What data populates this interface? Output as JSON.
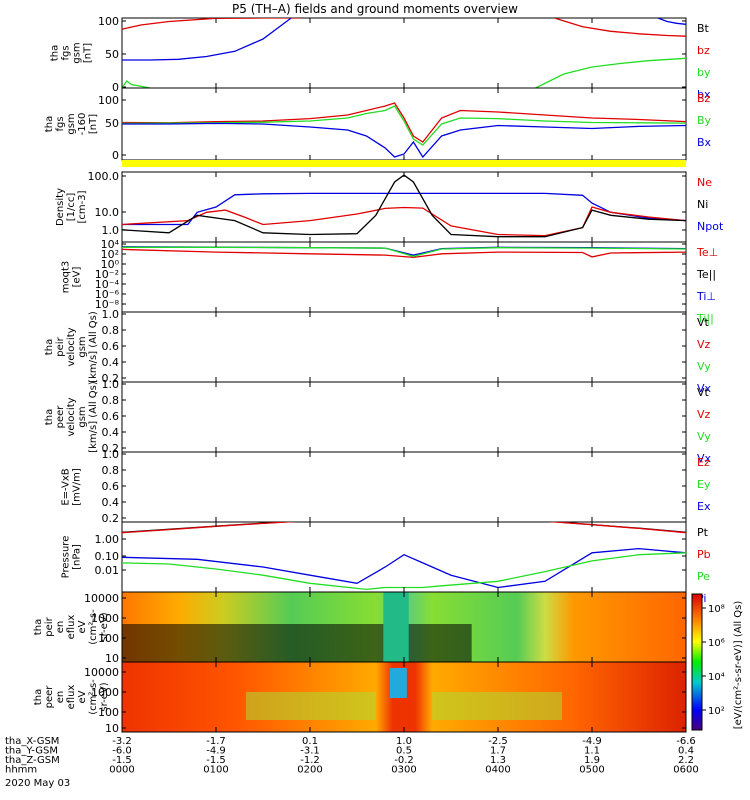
{
  "title": "P5 (TH–A) fields and ground moments overview",
  "footer_date": "2020 May 03",
  "colorbar_label": "[eV/(cm²-s-sr-eV)] (All Qs)",
  "colorbar_ticks": [
    "10⁸",
    "10⁶",
    "10⁴",
    "10²"
  ],
  "colors": {
    "red": "#e00000",
    "green": "#22dd22",
    "blue": "#0000e0",
    "yellow": "#ffff00",
    "black": "#000000"
  },
  "x_axis": {
    "row_labels": [
      "tha_X-GSM",
      "tha_Y-GSM",
      "tha_Z-GSM",
      "hhmm"
    ],
    "columns": [
      {
        "values": [
          "-3.2",
          "-6.0",
          "-1.5",
          "0000"
        ]
      },
      {
        "values": [
          "-1.7",
          "-4.9",
          "-1.5",
          "0100"
        ]
      },
      {
        "values": [
          "0.1",
          "-3.1",
          "-1.2",
          "0200"
        ]
      },
      {
        "values": [
          "1.0",
          "0.5",
          "-0.2",
          "0300"
        ]
      },
      {
        "values": [
          "-2.5",
          "1.7",
          "1.3",
          "0400"
        ]
      },
      {
        "values": [
          "-4.9",
          "1.1",
          "1.9",
          "0500"
        ]
      },
      {
        "values": [
          "-6.6",
          "0.4",
          "2.2",
          "0600"
        ]
      }
    ]
  },
  "chart_data": [
    {
      "type": "line",
      "ylabel_lines": [
        "tha",
        "fgs",
        "gsm",
        "[nT]"
      ],
      "ylim": [
        -100,
        100
      ],
      "yticks": [
        "100",
        "50",
        "0",
        "-50",
        "-100"
      ],
      "legend": [
        {
          "label": "Bt",
          "color": "black"
        },
        {
          "label": "bz",
          "color": "red"
        },
        {
          "label": "by",
          "color": "green"
        },
        {
          "label": "bx",
          "color": "blue"
        }
      ],
      "series": [
        {
          "name": "bz",
          "color": "red",
          "x": [
            0,
            0.2,
            0.5,
            1,
            1.5,
            1.9
          ],
          "y": [
            68,
            80,
            90,
            99,
            100,
            100
          ]
        },
        {
          "name": "bz",
          "color": "red",
          "x": [
            4.6,
            4.9,
            5.2,
            5.5,
            5.8,
            6.0
          ],
          "y": [
            100,
            75,
            62,
            55,
            50,
            48
          ]
        },
        {
          "name": "bx",
          "color": "blue",
          "x": [
            0,
            0.3,
            0.6,
            0.9,
            1.2,
            1.5,
            1.7,
            1.8
          ],
          "y": [
            -20,
            -20,
            -18,
            -10,
            5,
            40,
            80,
            100
          ]
        },
        {
          "name": "bx",
          "color": "blue",
          "x": [
            5.7,
            5.8,
            5.9,
            6.0
          ],
          "y": [
            100,
            90,
            85,
            82
          ]
        },
        {
          "name": "by",
          "color": "green",
          "x": [
            0,
            0.05,
            0.1,
            0.3
          ],
          "y": [
            -100,
            -80,
            -90,
            -100
          ]
        },
        {
          "name": "by",
          "color": "green",
          "x": [
            4.4,
            4.7,
            5.0,
            5.3,
            5.6,
            6.0
          ],
          "y": [
            -100,
            -60,
            -40,
            -30,
            -22,
            -15
          ]
        }
      ]
    },
    {
      "type": "line",
      "ylabel_lines": [
        "tha",
        "fgs",
        "gsm",
        "-160",
        "[nT]"
      ],
      "ylim": [
        -120,
        120
      ],
      "yticks": [
        "100",
        "50",
        "0",
        "-50",
        "-100"
      ],
      "legend": [
        {
          "label": "Bz",
          "color": "red"
        },
        {
          "label": "By",
          "color": "green"
        },
        {
          "label": "Bx",
          "color": "blue"
        }
      ],
      "series": [
        {
          "name": "Bz",
          "color": "red",
          "x": [
            0,
            0.5,
            1,
            1.5,
            2,
            2.4,
            2.6,
            2.8,
            2.9,
            3.0,
            3.1,
            3.2,
            3.4,
            3.6,
            4,
            4.5,
            5,
            5.5,
            6
          ],
          "y": [
            5,
            4,
            8,
            10,
            18,
            30,
            45,
            60,
            70,
            20,
            -40,
            -60,
            20,
            45,
            40,
            30,
            20,
            15,
            8
          ]
        },
        {
          "name": "By",
          "color": "green",
          "x": [
            0,
            0.5,
            1,
            1.5,
            2,
            2.4,
            2.6,
            2.8,
            2.9,
            3.0,
            3.1,
            3.2,
            3.4,
            3.6,
            4,
            4.5,
            5,
            5.5,
            6
          ],
          "y": [
            2,
            3,
            4,
            6,
            10,
            20,
            35,
            45,
            60,
            10,
            -50,
            -70,
            0,
            20,
            18,
            10,
            5,
            4,
            3
          ]
        },
        {
          "name": "Bx",
          "color": "blue",
          "x": [
            0,
            0.5,
            1,
            1.5,
            2,
            2.4,
            2.6,
            2.8,
            2.9,
            3.0,
            3.1,
            3.2,
            3.4,
            3.6,
            4,
            4.5,
            5,
            5.5,
            6
          ],
          "y": [
            0,
            0,
            2,
            0,
            -10,
            -20,
            -40,
            -80,
            -110,
            -100,
            -60,
            -110,
            -40,
            -20,
            -5,
            -10,
            -15,
            -8,
            -5
          ]
        }
      ]
    },
    {
      "type": "line",
      "ylabel_lines": [
        "Density",
        "[1/cc]",
        "[cm-3]"
      ],
      "yscale": "log",
      "ylim": [
        0.03,
        300
      ],
      "yticks": [
        "100.0",
        "10.0",
        "1.0",
        "0.1"
      ],
      "legend": [
        {
          "label": "Ne",
          "color": "red"
        },
        {
          "label": "Ni",
          "color": "black"
        },
        {
          "label": "Npot",
          "color": "blue"
        }
      ],
      "series": [
        {
          "name": "Npot",
          "color": "blue",
          "x": [
            0,
            0.7,
            0.8,
            1,
            1.2,
            1.5,
            2,
            2.5,
            3,
            3.5,
            4,
            4.5,
            4.9,
            5.0,
            5.2,
            5.6,
            6
          ],
          "y": [
            0.3,
            0.3,
            1.5,
            3,
            15,
            17,
            18,
            18,
            18,
            18,
            18,
            18,
            14,
            5,
            1.5,
            0.7,
            0.5
          ]
        },
        {
          "name": "Ne",
          "color": "red",
          "x": [
            0,
            0.7,
            0.9,
            1.1,
            1.3,
            1.5,
            2,
            2.5,
            2.8,
            3,
            3.2,
            3.5,
            4,
            4.5,
            4.9,
            5.0,
            5.2,
            5.6,
            6
          ],
          "y": [
            0.3,
            0.5,
            1.5,
            2,
            0.8,
            0.3,
            0.5,
            1.2,
            2.5,
            2.8,
            2.6,
            0.25,
            0.08,
            0.07,
            0.2,
            3,
            1.5,
            0.8,
            0.5
          ]
        },
        {
          "name": "Ni",
          "color": "black",
          "x": [
            0,
            0.5,
            0.8,
            1.2,
            1.5,
            2,
            2.5,
            2.7,
            2.9,
            3.0,
            3.1,
            3.3,
            3.5,
            4,
            4.5,
            4.9,
            5.0,
            5.2,
            5.6,
            6
          ],
          "y": [
            0.15,
            0.1,
            1,
            0.5,
            0.1,
            0.08,
            0.09,
            1,
            80,
            200,
            80,
            1,
            0.08,
            0.06,
            0.06,
            0.2,
            2,
            1,
            0.6,
            0.5
          ]
        }
      ]
    },
    {
      "type": "line",
      "ylabel_lines": [
        "moqt3",
        "[eV]"
      ],
      "yscale": "log",
      "ylim": [
        1e-11,
        100000.0
      ],
      "yticks": [
        "10⁴",
        "10²",
        "10⁰",
        "10⁻²",
        "10⁻⁴",
        "10⁻⁶",
        "10⁻⁸",
        "10⁻¹⁰"
      ],
      "legend": [
        {
          "label": "Te⊥",
          "color": "red"
        },
        {
          "label": "Te||",
          "color": "black"
        },
        {
          "label": "Ti⊥",
          "color": "blue"
        },
        {
          "label": "Ti||",
          "color": "green"
        }
      ],
      "series": [
        {
          "name": "Ti⊥",
          "color": "blue",
          "x": [
            0,
            1,
            2,
            2.8,
            3.1,
            3.4,
            4,
            5,
            6
          ],
          "y": [
            8000,
            7000,
            5000,
            4000,
            100,
            3000,
            6000,
            5000,
            3000
          ]
        },
        {
          "name": "Te⊥",
          "color": "red",
          "x": [
            0,
            1,
            2,
            2.8,
            3.1,
            3.4,
            4,
            4.9,
            5,
            5.2,
            6
          ],
          "y": [
            2000,
            500,
            200,
            100,
            30,
            200,
            500,
            400,
            40,
            300,
            500
          ]
        },
        {
          "name": "Ti||",
          "color": "green",
          "x": [
            0,
            1,
            2,
            2.8,
            3.1,
            3.4,
            4,
            5,
            6
          ],
          "y": [
            6000,
            6000,
            5000,
            4000,
            50,
            2500,
            5000,
            4000,
            2500
          ]
        }
      ]
    },
    {
      "type": "line",
      "ylabel_lines": [
        "tha",
        "peir",
        "velocity",
        "gsm",
        "[km/s] (All Qs)"
      ],
      "ylim": [
        0,
        1
      ],
      "yticks": [
        "1.0",
        "0.8",
        "0.6",
        "0.4",
        "0.2",
        "0.0"
      ],
      "legend": [
        {
          "label": "Vt",
          "color": "black"
        },
        {
          "label": "Vz",
          "color": "red"
        },
        {
          "label": "Vy",
          "color": "green"
        },
        {
          "label": "Vx",
          "color": "blue"
        }
      ],
      "series": []
    },
    {
      "type": "line",
      "ylabel_lines": [
        "tha",
        "peer",
        "velocity",
        "gsm",
        "[km/s] (All Qs)"
      ],
      "ylim": [
        0,
        1
      ],
      "yticks": [
        "1.0",
        "0.8",
        "0.6",
        "0.4",
        "0.2",
        "0.0"
      ],
      "legend": [
        {
          "label": "Vt",
          "color": "black"
        },
        {
          "label": "Vz",
          "color": "red"
        },
        {
          "label": "Vy",
          "color": "green"
        },
        {
          "label": "Vx",
          "color": "blue"
        }
      ],
      "series": []
    },
    {
      "type": "line",
      "ylabel_lines": [
        "E=-VxB",
        "[mV/m]"
      ],
      "ylim": [
        0,
        1
      ],
      "yticks": [
        "1.0",
        "0.8",
        "0.6",
        "0.4",
        "0.2",
        "0.0"
      ],
      "legend": [
        {
          "label": "Ez",
          "color": "red"
        },
        {
          "label": "Ey",
          "color": "green"
        },
        {
          "label": "Ex",
          "color": "blue"
        }
      ],
      "series": []
    },
    {
      "type": "line",
      "ylabel_lines": [
        "Pressure",
        "[nPa]"
      ],
      "yscale": "log",
      "ylim": [
        0.003,
        8
      ],
      "yticks": [
        "1.00",
        "0.10",
        "0.01"
      ],
      "legend": [
        {
          "label": "Pt",
          "color": "black"
        },
        {
          "label": "Pb",
          "color": "red"
        },
        {
          "label": "Pe",
          "color": "green"
        },
        {
          "label": "Pi",
          "color": "blue"
        }
      ],
      "series": [
        {
          "name": "Pt",
          "color": "black",
          "x": [
            0,
            0.5,
            1,
            1.5,
            1.9,
            4.5,
            5,
            5.5,
            6
          ],
          "y": [
            2.5,
            3.5,
            5,
            7,
            9,
            9,
            6,
            4,
            2.5
          ]
        },
        {
          "name": "Pb",
          "color": "red",
          "x": [
            0,
            0.5,
            1,
            1.5,
            1.9,
            4.5,
            5,
            5.5,
            6
          ],
          "y": [
            2.4,
            3.4,
            4.9,
            6.8,
            8.8,
            8.8,
            5.9,
            3.9,
            2.4
          ]
        },
        {
          "name": "Pi",
          "color": "blue",
          "x": [
            0,
            0.8,
            1.5,
            2,
            2.5,
            2.8,
            3,
            3.2,
            3.5,
            4,
            4.5,
            5,
            5.5,
            6
          ],
          "y": [
            0.15,
            0.12,
            0.05,
            0.02,
            0.008,
            0.05,
            0.2,
            0.08,
            0.02,
            0.005,
            0.01,
            0.25,
            0.4,
            0.25
          ]
        },
        {
          "name": "Pe",
          "color": "green",
          "x": [
            0,
            0.5,
            1,
            1.5,
            2,
            2.6,
            2.8,
            3.2,
            3.4,
            4,
            4.5,
            5,
            5.5,
            6
          ],
          "y": [
            0.08,
            0.07,
            0.04,
            0.02,
            0.008,
            0.004,
            0.005,
            0.005,
            0.006,
            0.01,
            0.03,
            0.1,
            0.2,
            0.25
          ]
        }
      ]
    },
    {
      "type": "heatmap",
      "ylabel_lines": [
        "tha",
        "peir",
        "en",
        "eflux",
        "eV",
        "(cm²-s-",
        "sr-eV)"
      ],
      "yscale": "log",
      "ylim": [
        6,
        30000
      ],
      "yticks": [
        "10000",
        "1000",
        "100",
        "10"
      ]
    },
    {
      "type": "heatmap",
      "ylabel_lines": [
        "tha",
        "peer",
        "en",
        "eflux",
        "eV",
        "(cm²-s-",
        "sr-eV)"
      ],
      "yscale": "log",
      "ylim": [
        6,
        30000
      ],
      "yticks": [
        "10000",
        "1000",
        "100",
        "10"
      ]
    }
  ]
}
